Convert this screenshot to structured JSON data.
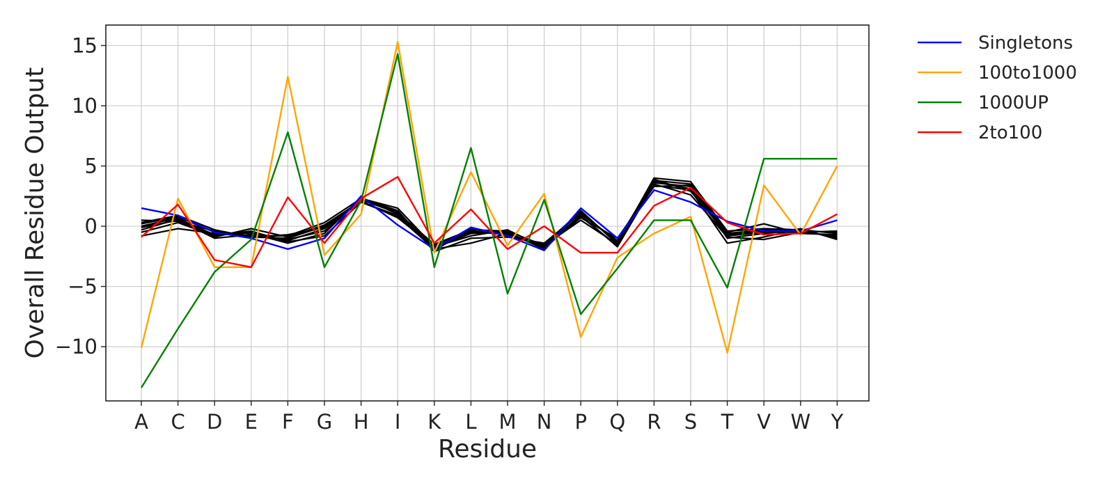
{
  "chart_data": {
    "type": "line",
    "title": "",
    "xlabel": "Residue",
    "ylabel": "Overall Residue Output",
    "categories": [
      "A",
      "C",
      "D",
      "E",
      "F",
      "G",
      "H",
      "I",
      "K",
      "L",
      "M",
      "N",
      "P",
      "Q",
      "R",
      "S",
      "T",
      "V",
      "W",
      "Y"
    ],
    "ylim": [
      -14.5,
      16.7
    ],
    "yticks": [
      15,
      10,
      5,
      0,
      -5,
      -10
    ],
    "ytick_labels": [
      "15",
      "10",
      "5",
      "0",
      "−5",
      "−10"
    ],
    "grid": true,
    "legend_position": "outside-top-right",
    "series": [
      {
        "name": "Singletons",
        "color": "#0000ff",
        "values": [
          1.5,
          0.9,
          -0.5,
          -1.0,
          -1.9,
          -1.0,
          2.5,
          0.1,
          -1.9,
          -0.1,
          -0.8,
          -2.0,
          1.5,
          -1.0,
          3.0,
          2.0,
          0.4,
          -0.4,
          -0.4,
          0.5
        ]
      },
      {
        "name": "100to1000",
        "color": "#ffa500",
        "values": [
          -10.1,
          2.3,
          -3.4,
          -3.4,
          12.4,
          -2.4,
          1.0,
          15.3,
          -2.2,
          4.5,
          -1.6,
          2.7,
          -9.2,
          -2.6,
          -0.6,
          0.8,
          -10.5,
          3.4,
          -0.7,
          5.0
        ]
      },
      {
        "name": "1000UP",
        "color": "#008000",
        "values": [
          -13.4,
          -8.5,
          -3.8,
          -1.1,
          7.8,
          -3.4,
          2.1,
          14.3,
          -3.4,
          6.5,
          -5.6,
          2.2,
          -7.3,
          -3.5,
          0.5,
          0.5,
          -5.1,
          5.6,
          5.6,
          5.6
        ]
      },
      {
        "name": "2to100",
        "color": "#ff0000",
        "values": [
          -0.9,
          1.8,
          -2.8,
          -3.4,
          2.4,
          -1.4,
          2.3,
          4.1,
          -1.4,
          1.4,
          -1.9,
          0.0,
          -2.2,
          -2.2,
          1.7,
          3.2,
          0.3,
          -0.7,
          -0.6,
          1.0
        ]
      }
    ],
    "background_series": [
      {
        "color": "#000000",
        "values": [
          0.2,
          0.8,
          -0.5,
          -0.8,
          -0.8,
          0.3,
          2.3,
          1.5,
          -1.7,
          -0.5,
          -0.6,
          -1.7,
          1.2,
          -1.4,
          4.0,
          3.7,
          -0.4,
          -0.2,
          -0.3,
          -0.6
        ]
      },
      {
        "color": "#000000",
        "values": [
          -0.3,
          0.6,
          -0.7,
          -0.5,
          -1.2,
          -0.2,
          2.2,
          1.2,
          -2.0,
          -0.2,
          -0.8,
          -1.5,
          0.8,
          -1.6,
          3.6,
          3.3,
          -0.8,
          -0.5,
          -0.5,
          -0.8
        ]
      },
      {
        "color": "#000000",
        "values": [
          0.5,
          0.4,
          -0.4,
          -0.9,
          -1.0,
          0.0,
          2.0,
          0.9,
          -1.8,
          -0.6,
          -0.5,
          -1.9,
          1.0,
          -1.2,
          3.8,
          3.5,
          -0.6,
          -0.3,
          -0.4,
          -0.9
        ]
      },
      {
        "color": "#000000",
        "values": [
          -0.8,
          -0.2,
          -0.6,
          -0.6,
          -1.4,
          -0.6,
          2.4,
          1.0,
          -1.6,
          -0.4,
          -0.7,
          -1.6,
          0.5,
          -1.5,
          3.4,
          3.0,
          -1.4,
          -0.9,
          -0.2,
          -1.1
        ]
      },
      {
        "color": "#000000",
        "values": [
          0.0,
          0.7,
          -0.9,
          -0.2,
          -0.9,
          0.1,
          2.1,
          0.7,
          -1.7,
          -0.8,
          -0.3,
          -1.8,
          0.9,
          -1.7,
          3.5,
          2.6,
          -0.9,
          -1.1,
          -0.5,
          -0.4
        ]
      },
      {
        "color": "#000000",
        "values": [
          -0.1,
          0.5,
          -1.0,
          -0.7,
          -1.1,
          -0.4,
          2.3,
          1.3,
          -2.1,
          -1.0,
          -0.9,
          -1.4,
          1.1,
          -1.3,
          3.7,
          3.1,
          -0.5,
          0.2,
          -0.6,
          -0.7
        ]
      },
      {
        "color": "#000000",
        "values": [
          -0.5,
          0.3,
          -0.8,
          -0.4,
          -1.3,
          -0.8,
          2.0,
          0.8,
          -1.9,
          -1.4,
          -0.6,
          -1.7,
          0.7,
          -1.0,
          3.3,
          3.4,
          -1.0,
          -0.6,
          -0.3,
          -1.0
        ]
      },
      {
        "color": "#000000",
        "values": [
          0.3,
          0.9,
          -0.3,
          -0.9,
          -0.7,
          -0.1,
          2.2,
          1.1,
          -1.5,
          -0.3,
          -0.4,
          -1.6,
          1.3,
          -1.5,
          3.9,
          2.9,
          -0.7,
          -0.4,
          -0.4,
          -0.5
        ]
      }
    ]
  }
}
